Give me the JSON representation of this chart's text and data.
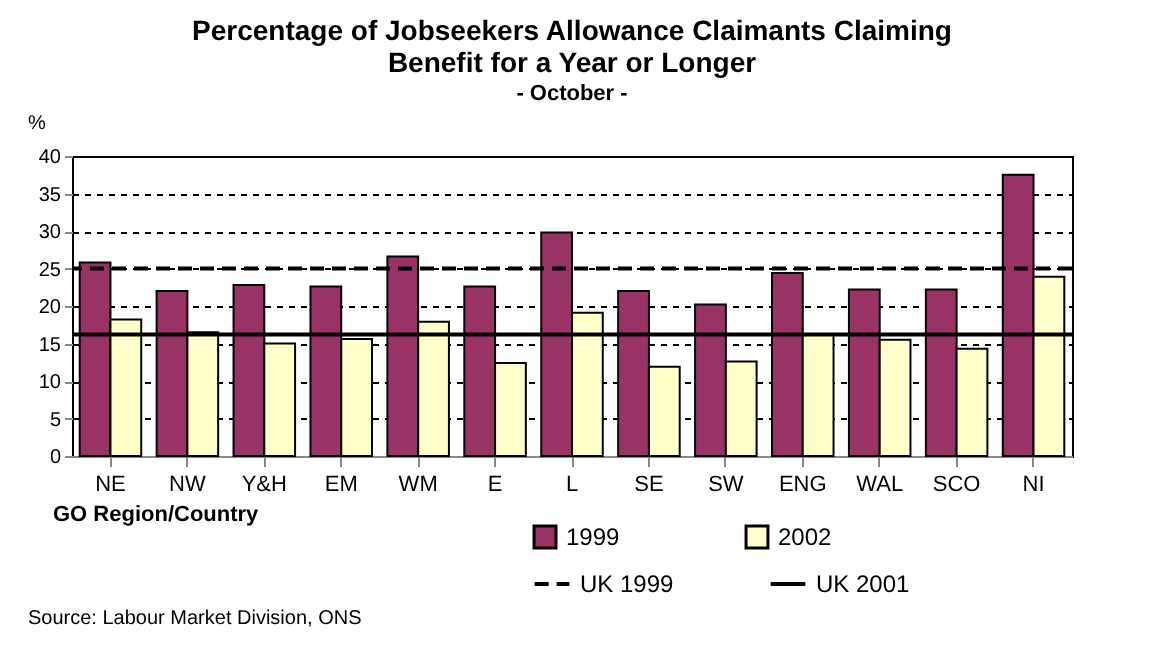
{
  "chart_data": {
    "type": "bar",
    "title": "Percentage of Jobseekers Allowance Claimants Claiming Benefit for a Year or Longer",
    "subtitle": "- October -",
    "xlabel": "GO Region/Country",
    "ylabel": "%",
    "categories": [
      "NE",
      "NW",
      "Y&H",
      "EM",
      "WM",
      "E",
      "L",
      "SE",
      "SW",
      "ENG",
      "WAL",
      "SCO",
      "NI"
    ],
    "series": [
      {
        "name": "1999",
        "color": "#993366",
        "values": [
          25.8,
          22.0,
          22.8,
          22.6,
          26.6,
          22.6,
          29.8,
          22.0,
          20.2,
          24.4,
          22.2,
          22.2,
          37.5
        ]
      },
      {
        "name": "2002",
        "color": "#ffffcc",
        "values": [
          18.2,
          16.5,
          15.0,
          15.6,
          17.9,
          12.4,
          19.1,
          11.9,
          12.6,
          16.2,
          15.5,
          14.3,
          23.9
        ]
      }
    ],
    "ylim": [
      0,
      40
    ],
    "yticks": [
      0,
      5,
      10,
      15,
      20,
      25,
      30,
      35,
      40
    ],
    "grid": "y",
    "legend": "bottom right",
    "ref_lines": [
      {
        "axis": "y",
        "value": 25.0,
        "label": "UK 1999",
        "color": "#000000",
        "line_style": "dashed"
      },
      {
        "axis": "y",
        "value": 16.2,
        "label": "UK 2001",
        "color": "#000000",
        "line_style": "solid"
      }
    ],
    "annotations": [
      "Source: Labour Market Division, ONS"
    ]
  }
}
